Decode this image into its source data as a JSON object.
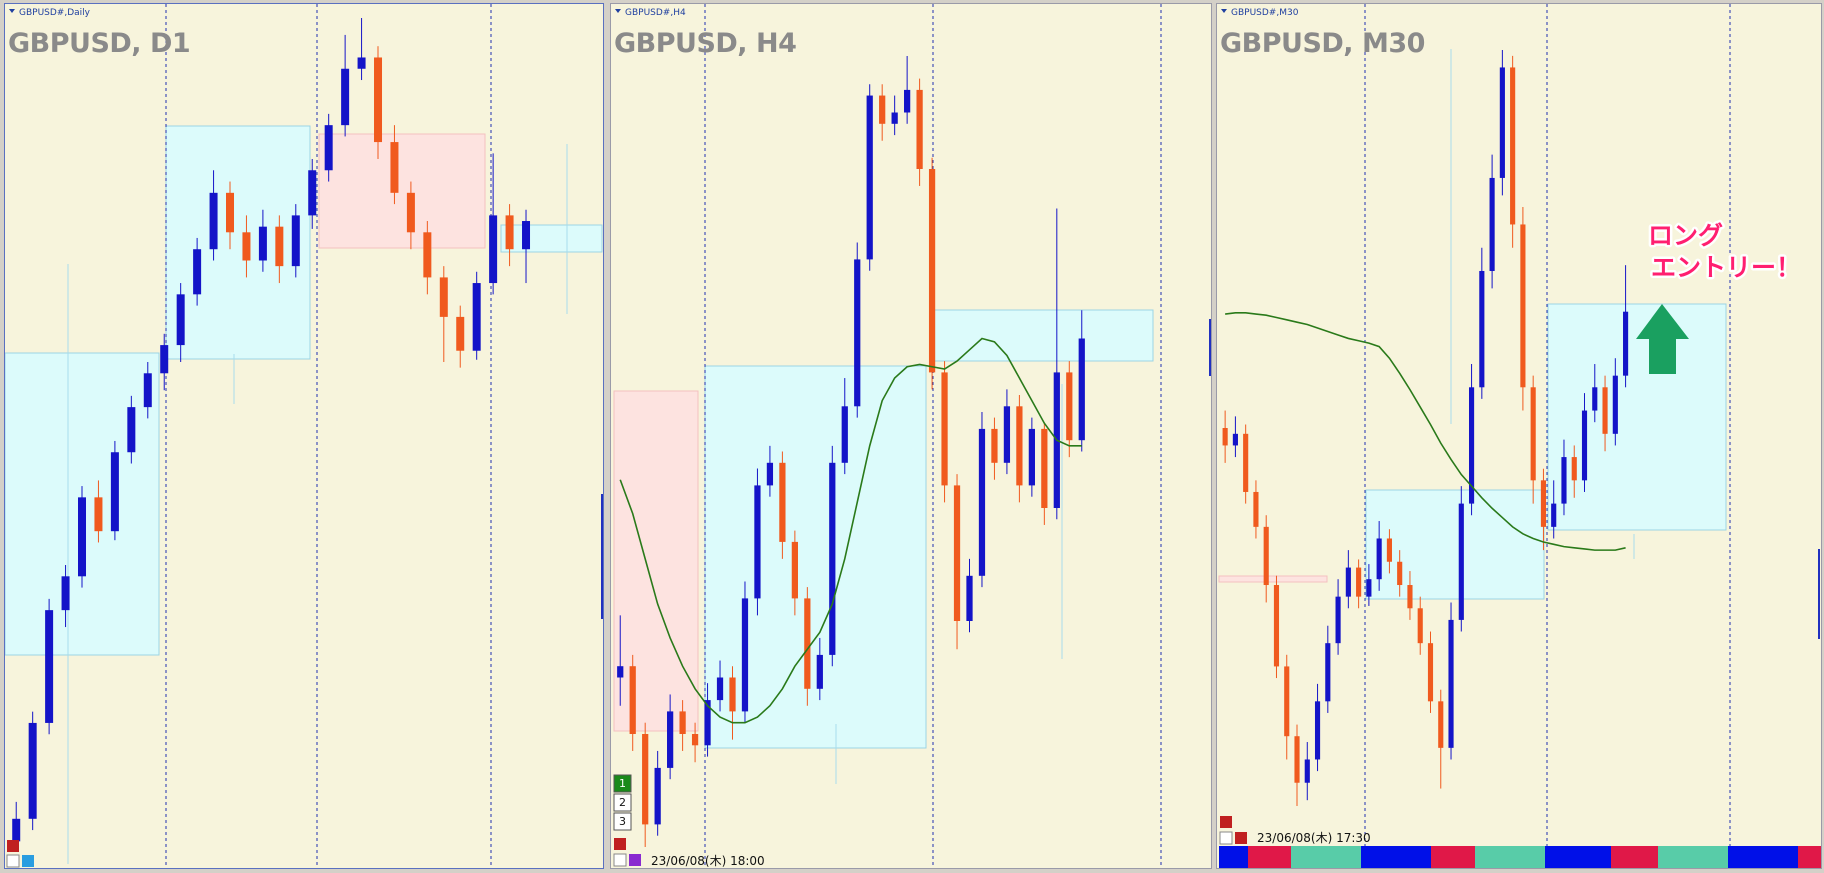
{
  "panels": [
    {
      "label": "GBPUSD#,Daily",
      "title": "GBPUSD, D1",
      "candles": [
        [
          5,
          40,
          0,
          25
        ],
        [
          25,
          120,
          15,
          110
        ],
        [
          110,
          220,
          100,
          210
        ],
        [
          210,
          250,
          195,
          240
        ],
        [
          240,
          320,
          230,
          310
        ],
        [
          310,
          325,
          270,
          280
        ],
        [
          280,
          360,
          272,
          350
        ],
        [
          350,
          400,
          340,
          390
        ],
        [
          390,
          430,
          380,
          420
        ],
        [
          420,
          455,
          405,
          445
        ],
        [
          445,
          500,
          430,
          490
        ],
        [
          490,
          540,
          480,
          530
        ],
        [
          530,
          600,
          520,
          580
        ],
        [
          580,
          590,
          530,
          545
        ],
        [
          545,
          560,
          505,
          520
        ],
        [
          520,
          565,
          510,
          550
        ],
        [
          550,
          560,
          500,
          515
        ],
        [
          515,
          570,
          505,
          560
        ],
        [
          560,
          610,
          548,
          600
        ],
        [
          600,
          650,
          590,
          640
        ],
        [
          640,
          720,
          630,
          690
        ],
        [
          690,
          735,
          680,
          700
        ],
        [
          700,
          710,
          610,
          625
        ],
        [
          625,
          640,
          570,
          580
        ],
        [
          580,
          590,
          530,
          545
        ],
        [
          545,
          555,
          490,
          505
        ],
        [
          505,
          515,
          430,
          470
        ],
        [
          470,
          480,
          425,
          440
        ],
        [
          440,
          510,
          432,
          500
        ],
        [
          500,
          615,
          490,
          560
        ],
        [
          560,
          570,
          515,
          530
        ],
        [
          530,
          565,
          500,
          555
        ]
      ]
    },
    {
      "label": "GBPUSD#,H4",
      "title": "GBPUSD, H4",
      "candles": [
        [
          175,
          230,
          150,
          185
        ],
        [
          185,
          195,
          110,
          125
        ],
        [
          125,
          135,
          25,
          45
        ],
        [
          45,
          110,
          35,
          95
        ],
        [
          95,
          160,
          85,
          145
        ],
        [
          145,
          155,
          110,
          125
        ],
        [
          125,
          135,
          100,
          115
        ],
        [
          115,
          170,
          105,
          155
        ],
        [
          155,
          190,
          145,
          175
        ],
        [
          175,
          185,
          120,
          145
        ],
        [
          145,
          260,
          135,
          245
        ],
        [
          245,
          360,
          230,
          345
        ],
        [
          345,
          380,
          335,
          365
        ],
        [
          365,
          375,
          280,
          295
        ],
        [
          295,
          305,
          230,
          245
        ],
        [
          245,
          255,
          150,
          165
        ],
        [
          165,
          210,
          155,
          195
        ],
        [
          195,
          380,
          185,
          365
        ],
        [
          365,
          440,
          355,
          415
        ],
        [
          415,
          560,
          405,
          545
        ],
        [
          545,
          700,
          535,
          690
        ],
        [
          690,
          700,
          650,
          665
        ],
        [
          665,
          690,
          655,
          675
        ],
        [
          675,
          725,
          665,
          695
        ],
        [
          695,
          705,
          610,
          625
        ],
        [
          625,
          635,
          430,
          445
        ],
        [
          445,
          455,
          330,
          345
        ],
        [
          345,
          355,
          200,
          225
        ],
        [
          225,
          280,
          215,
          265
        ],
        [
          265,
          410,
          255,
          395
        ],
        [
          395,
          405,
          350,
          365
        ],
        [
          365,
          430,
          355,
          415
        ],
        [
          415,
          425,
          330,
          345
        ],
        [
          345,
          405,
          335,
          395
        ],
        [
          395,
          400,
          310,
          325
        ],
        [
          325,
          590,
          315,
          445
        ],
        [
          445,
          455,
          370,
          385
        ],
        [
          385,
          500,
          375,
          475
        ]
      ],
      "ma": [
        350,
        320,
        280,
        240,
        210,
        185,
        165,
        150,
        140,
        135,
        135,
        140,
        150,
        165,
        185,
        200,
        215,
        240,
        280,
        330,
        380,
        420,
        440,
        450,
        452,
        450,
        448,
        455,
        465,
        475,
        472,
        460,
        440,
        420,
        400,
        385,
        380,
        380
      ],
      "buttons": [
        "1",
        "2",
        "3"
      ],
      "timestamp": "23/06/08(木) 18:00"
    },
    {
      "label": "GBPUSD#,M30",
      "title": "GBPUSD, M30",
      "candles": [
        [
          385,
          400,
          355,
          370
        ],
        [
          370,
          395,
          360,
          380
        ],
        [
          380,
          388,
          320,
          330
        ],
        [
          330,
          340,
          290,
          300
        ],
        [
          300,
          310,
          235,
          250
        ],
        [
          250,
          258,
          170,
          180
        ],
        [
          180,
          190,
          100,
          120
        ],
        [
          120,
          130,
          60,
          80
        ],
        [
          80,
          115,
          65,
          100
        ],
        [
          100,
          165,
          90,
          150
        ],
        [
          150,
          215,
          140,
          200
        ],
        [
          200,
          255,
          190,
          240
        ],
        [
          240,
          280,
          230,
          265
        ],
        [
          265,
          272,
          230,
          240
        ],
        [
          240,
          268,
          232,
          255
        ],
        [
          255,
          305,
          245,
          290
        ],
        [
          290,
          298,
          260,
          270
        ],
        [
          270,
          280,
          240,
          250
        ],
        [
          250,
          262,
          220,
          230
        ],
        [
          230,
          240,
          190,
          200
        ],
        [
          200,
          210,
          140,
          150
        ],
        [
          150,
          160,
          75,
          110
        ],
        [
          110,
          235,
          100,
          220
        ],
        [
          220,
          335,
          210,
          320
        ],
        [
          320,
          440,
          310,
          420
        ],
        [
          420,
          540,
          410,
          520
        ],
        [
          520,
          620,
          505,
          600
        ],
        [
          600,
          710,
          585,
          695
        ],
        [
          695,
          705,
          540,
          560
        ],
        [
          560,
          575,
          400,
          420
        ],
        [
          420,
          430,
          320,
          340
        ],
        [
          340,
          350,
          280,
          300
        ],
        [
          300,
          340,
          290,
          320
        ],
        [
          320,
          375,
          310,
          360
        ],
        [
          360,
          370,
          325,
          340
        ],
        [
          340,
          415,
          330,
          400
        ],
        [
          400,
          440,
          390,
          420
        ],
        [
          420,
          430,
          365,
          380
        ],
        [
          380,
          445,
          370,
          430
        ],
        [
          430,
          525,
          420,
          485
        ]
      ],
      "ma": [
        483,
        484,
        484,
        483,
        482,
        480,
        478,
        476,
        474,
        471,
        468,
        465,
        462,
        460,
        458,
        455,
        445,
        432,
        418,
        403,
        388,
        372,
        358,
        345,
        335,
        325,
        316,
        308,
        300,
        294,
        290,
        287,
        285,
        283,
        282,
        281,
        280,
        280,
        280,
        282
      ],
      "timestamp": "23/06/08(木) 17:30",
      "annotation": [
        "ロング",
        "エントリー！"
      ]
    }
  ]
}
